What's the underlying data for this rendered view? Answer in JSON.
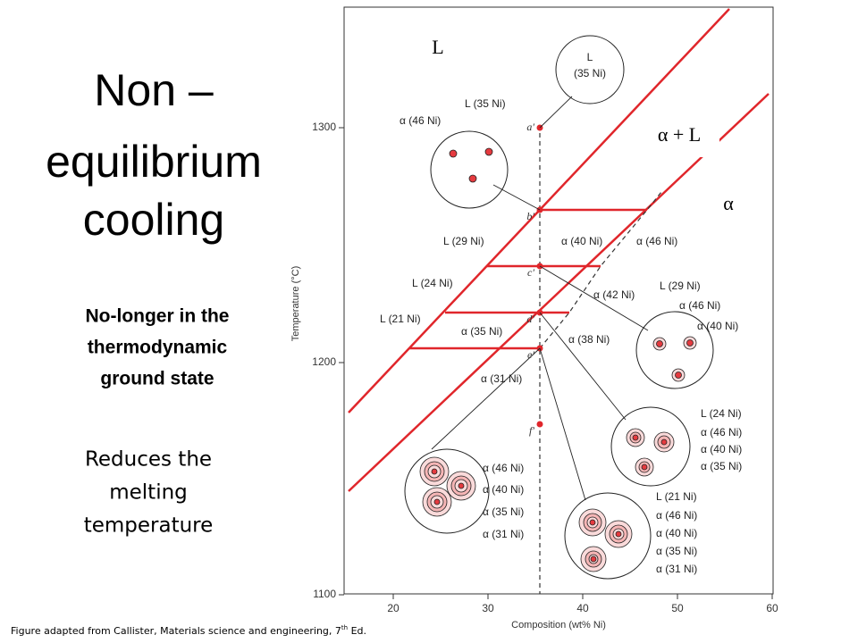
{
  "slide": {
    "title": [
      "Non –",
      "equilibrium",
      "cooling"
    ],
    "subtitle": [
      "No-longer in the",
      "thermodynamic",
      "ground state"
    ],
    "body": [
      "Reduces the",
      "melting",
      "temperature"
    ],
    "footer": {
      "before": "Figure adapted from Callister, Materials science and engineering, 7",
      "sup": "th",
      "after": " Ed."
    }
  },
  "figure": {
    "region_labels": [
      "L",
      "α + L",
      "α"
    ],
    "point_labels": [
      "a′",
      "b′",
      "c′",
      "d′",
      "e′",
      "f′"
    ],
    "y_ticks": [
      "1300",
      "1200",
      "1100"
    ],
    "x_ticks": [
      "20",
      "30",
      "40",
      "50",
      "60"
    ],
    "y_axis_title": "Temperature (°C)",
    "x_axis_title": "Composition (wt% Ni)",
    "annotations": [
      "L",
      "(35 Ni)",
      "L (35 Ni)",
      "α (46 Ni)",
      "L (29 Ni)",
      "α (40 Ni)",
      "α (46 Ni)",
      "L (24 Ni)",
      "α (42 Ni)",
      "L (21 Ni)",
      "α (35 Ni)",
      "α (38 Ni)",
      "α (31 Ni)",
      "L (29 Ni)",
      "α (46 Ni)",
      "α (40 Ni)",
      "L (24 Ni)",
      "α (46 Ni)",
      "α (40 Ni)",
      "α (35 Ni)",
      "α (46 Ni)",
      "α (40 Ni)",
      "α (35 Ni)",
      "α (31 Ni)",
      "L (21 Ni)",
      "α (46 Ni)",
      "α (40 Ni)",
      "α (35 Ni)",
      "α (31 Ni)"
    ]
  }
}
